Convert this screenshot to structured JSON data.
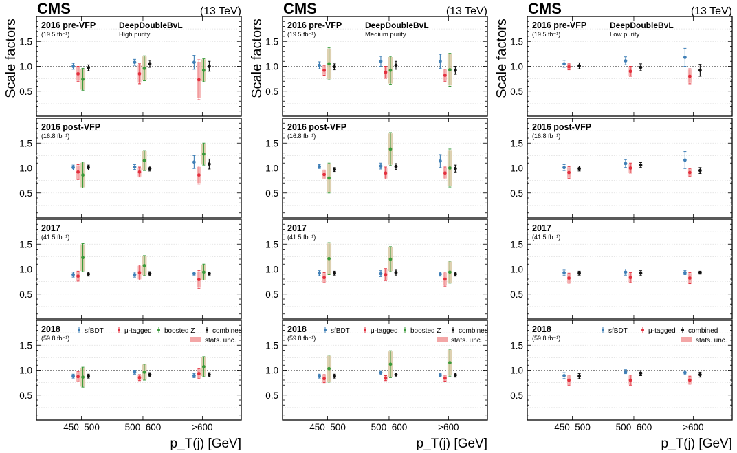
{
  "figure": {
    "cms_label": "CMS",
    "energy_label": "(13 TeV)",
    "ylabel": "Scale factors",
    "xlabel": "p_T(j) [GeV]",
    "legend": {
      "sfbdt": "sfBDT",
      "mu_tagged": "μ-tagged",
      "boosted_z": "boosted Z",
      "combined": "combined",
      "stats_unc": "stats. unc."
    },
    "colors": {
      "sfbdt": "#3f7fb6",
      "mu_tagged": "#e3303e",
      "boosted_z": "#3a9a3a",
      "combined": "#111111",
      "stats_band": "#f3a6a6",
      "syst_band": "#d8c9a3"
    }
  },
  "chart_data": [
    {
      "type": "errorbar",
      "column_tagger": "DeepDoubleBvL",
      "column_purity": "High purity",
      "categories": [
        "450–500",
        "500–600",
        ">600"
      ],
      "ylim": [
        0,
        2.0
      ],
      "yticks": [
        0.5,
        1.0,
        1.5
      ],
      "panels": [
        {
          "era": "2016 pre-VFP",
          "lumi": "(19.5 fb⁻¹)",
          "sfbdt": [
            [
              1.0,
              0.06
            ],
            [
              1.08,
              0.06
            ],
            [
              1.08,
              0.14
            ]
          ],
          "mu": [
            [
              0.85,
              0.15
            ],
            [
              0.85,
              0.2
            ],
            [
              0.73,
              0.4
            ]
          ],
          "z": [
            [
              0.74,
              0.22
            ],
            [
              0.96,
              0.25
            ],
            [
              0.92,
              0.23
            ]
          ],
          "comb": [
            [
              0.97,
              0.06
            ],
            [
              1.05,
              0.07
            ],
            [
              1.0,
              0.1
            ]
          ]
        },
        {
          "era": "2016 post-VFP",
          "lumi": "(16.8 fb⁻¹)",
          "sfbdt": [
            [
              1.01,
              0.05
            ],
            [
              1.02,
              0.05
            ],
            [
              1.12,
              0.13
            ]
          ],
          "mu": [
            [
              0.92,
              0.15
            ],
            [
              0.92,
              0.1
            ],
            [
              0.86,
              0.18
            ]
          ],
          "z": [
            [
              0.86,
              0.26
            ],
            [
              1.15,
              0.2
            ],
            [
              1.28,
              0.22
            ]
          ],
          "comb": [
            [
              1.01,
              0.05
            ],
            [
              0.99,
              0.05
            ],
            [
              1.08,
              0.1
            ]
          ]
        },
        {
          "era": "2017",
          "lumi": "(41.5 fb⁻¹)",
          "sfbdt": [
            [
              0.89,
              0.05
            ],
            [
              0.89,
              0.05
            ],
            [
              0.91,
              0.03
            ]
          ],
          "mu": [
            [
              0.86,
              0.1
            ],
            [
              0.93,
              0.15
            ],
            [
              0.79,
              0.18
            ]
          ],
          "z": [
            [
              1.23,
              0.28
            ],
            [
              1.07,
              0.2
            ],
            [
              0.94,
              0.16
            ]
          ],
          "comb": [
            [
              0.9,
              0.04
            ],
            [
              0.91,
              0.04
            ],
            [
              0.91,
              0.03
            ]
          ]
        },
        {
          "era": "2018",
          "lumi": "(59.8 fb⁻¹)",
          "sfbdt": [
            [
              0.88,
              0.04
            ],
            [
              0.96,
              0.04
            ],
            [
              0.89,
              0.04
            ]
          ],
          "mu": [
            [
              0.87,
              0.1
            ],
            [
              0.85,
              0.06
            ],
            [
              0.93,
              0.1
            ]
          ],
          "z": [
            [
              0.86,
              0.2
            ],
            [
              0.96,
              0.16
            ],
            [
              1.07,
              0.2
            ]
          ],
          "comb": [
            [
              0.88,
              0.04
            ],
            [
              0.91,
              0.04
            ],
            [
              0.91,
              0.04
            ]
          ]
        }
      ]
    },
    {
      "type": "errorbar",
      "column_tagger": "DeepDoubleBvL",
      "column_purity": "Medium purity",
      "categories": [
        "450–500",
        "500–600",
        ">600"
      ],
      "ylim": [
        0,
        2.0
      ],
      "yticks": [
        0.5,
        1.0,
        1.5
      ],
      "panels": [
        {
          "era": "2016 pre-VFP",
          "lumi": "(19.5 fb⁻¹)",
          "sfbdt": [
            [
              1.02,
              0.07
            ],
            [
              1.1,
              0.1
            ],
            [
              1.1,
              0.14
            ]
          ],
          "mu": [
            [
              0.92,
              0.1
            ],
            [
              0.88,
              0.12
            ],
            [
              0.82,
              0.12
            ]
          ],
          "z": [
            [
              1.05,
              0.32
            ],
            [
              0.92,
              0.28
            ],
            [
              0.93,
              0.33
            ]
          ],
          "comb": [
            [
              0.99,
              0.06
            ],
            [
              1.02,
              0.08
            ],
            [
              0.92,
              0.08
            ]
          ]
        },
        {
          "era": "2016 post-VFP",
          "lumi": "(16.8 fb⁻¹)",
          "sfbdt": [
            [
              1.03,
              0.04
            ],
            [
              1.04,
              0.06
            ],
            [
              1.14,
              0.13
            ]
          ],
          "mu": [
            [
              0.87,
              0.09
            ],
            [
              0.9,
              0.12
            ],
            [
              0.9,
              0.12
            ]
          ],
          "z": [
            [
              0.8,
              0.3
            ],
            [
              1.38,
              0.33
            ],
            [
              1.0,
              0.38
            ]
          ],
          "comb": [
            [
              0.97,
              0.04
            ],
            [
              1.03,
              0.06
            ],
            [
              0.99,
              0.07
            ]
          ]
        },
        {
          "era": "2017",
          "lumi": "(41.5 fb⁻¹)",
          "sfbdt": [
            [
              0.92,
              0.05
            ],
            [
              0.91,
              0.06
            ],
            [
              0.9,
              0.04
            ]
          ],
          "mu": [
            [
              0.83,
              0.1
            ],
            [
              0.89,
              0.12
            ],
            [
              0.8,
              0.14
            ]
          ],
          "z": [
            [
              1.21,
              0.32
            ],
            [
              1.2,
              0.25
            ],
            [
              0.94,
              0.22
            ]
          ],
          "comb": [
            [
              0.92,
              0.04
            ],
            [
              0.93,
              0.05
            ],
            [
              0.9,
              0.04
            ]
          ]
        },
        {
          "era": "2018",
          "lumi": "(59.8 fb⁻¹)",
          "sfbdt": [
            [
              0.88,
              0.04
            ],
            [
              0.95,
              0.04
            ],
            [
              0.9,
              0.03
            ]
          ],
          "mu": [
            [
              0.83,
              0.08
            ],
            [
              0.84,
              0.05
            ],
            [
              0.84,
              0.06
            ]
          ],
          "z": [
            [
              1.03,
              0.27
            ],
            [
              1.12,
              0.27
            ],
            [
              1.15,
              0.27
            ]
          ],
          "comb": [
            [
              0.88,
              0.04
            ],
            [
              0.91,
              0.03
            ],
            [
              0.9,
              0.04
            ]
          ]
        }
      ]
    },
    {
      "type": "errorbar",
      "column_tagger": "DeepDoubleBvL",
      "column_purity": "Low purity",
      "categories": [
        "450–500",
        "500–600",
        ">600"
      ],
      "ylim": [
        0,
        2.0
      ],
      "yticks": [
        0.5,
        1.0,
        1.5
      ],
      "panels": [
        {
          "era": "2016 pre-VFP",
          "lumi": "(19.5 fb⁻¹)",
          "sfbdt": [
            [
              1.05,
              0.07
            ],
            [
              1.11,
              0.08
            ],
            [
              1.18,
              0.18
            ]
          ],
          "mu": [
            [
              0.99,
              0.06
            ],
            [
              0.9,
              0.1
            ],
            [
              0.8,
              0.15
            ]
          ],
          "comb": [
            [
              1.01,
              0.06
            ],
            [
              0.98,
              0.07
            ],
            [
              0.92,
              0.12
            ]
          ]
        },
        {
          "era": "2016 post-VFP",
          "lumi": "(16.8 fb⁻¹)",
          "sfbdt": [
            [
              1.01,
              0.06
            ],
            [
              1.09,
              0.08
            ],
            [
              1.16,
              0.17
            ]
          ],
          "mu": [
            [
              0.91,
              0.12
            ],
            [
              1.0,
              0.1
            ],
            [
              0.91,
              0.08
            ]
          ],
          "comb": [
            [
              0.99,
              0.05
            ],
            [
              1.06,
              0.05
            ],
            [
              0.95,
              0.06
            ]
          ]
        },
        {
          "era": "2017",
          "lumi": "(41.5 fb⁻¹)",
          "sfbdt": [
            [
              0.93,
              0.05
            ],
            [
              0.94,
              0.06
            ],
            [
              0.93,
              0.04
            ]
          ],
          "mu": [
            [
              0.82,
              0.1
            ],
            [
              0.83,
              0.1
            ],
            [
              0.82,
              0.11
            ]
          ],
          "comb": [
            [
              0.92,
              0.04
            ],
            [
              0.92,
              0.05
            ],
            [
              0.93,
              0.03
            ]
          ]
        },
        {
          "era": "2018",
          "lumi": "(59.8 fb⁻¹)",
          "sfbdt": [
            [
              0.89,
              0.06
            ],
            [
              0.97,
              0.04
            ],
            [
              0.95,
              0.04
            ]
          ],
          "mu": [
            [
              0.8,
              0.1
            ],
            [
              0.8,
              0.1
            ],
            [
              0.8,
              0.08
            ]
          ],
          "comb": [
            [
              0.88,
              0.05
            ],
            [
              0.94,
              0.05
            ],
            [
              0.91,
              0.05
            ]
          ]
        }
      ]
    }
  ]
}
